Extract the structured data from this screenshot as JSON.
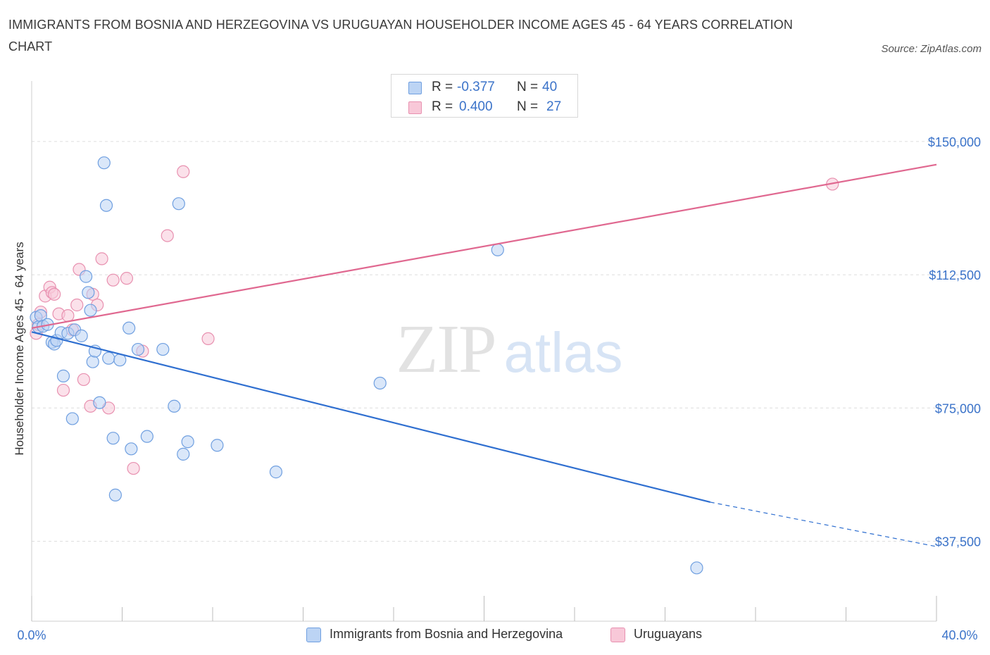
{
  "title": "IMMIGRANTS FROM BOSNIA AND HERZEGOVINA VS URUGUAYAN HOUSEHOLDER INCOME AGES 45 - 64 YEARS CORRELATION CHART",
  "source": "Source: ZipAtlas.com",
  "watermark": {
    "zip": "ZIP",
    "atlas": "atlas"
  },
  "colors": {
    "blue_fill": "#bcd4f4",
    "blue_stroke": "#6f9fe0",
    "blue_line": "#2f6fd0",
    "pink_fill": "#f8c8d8",
    "pink_stroke": "#e891b0",
    "pink_line": "#e06890",
    "axis_text": "#3b73c9",
    "grid": "#dddddd"
  },
  "legend": {
    "rows": [
      {
        "r_label": "R = ",
        "r_value": "-0.377",
        "n_label": "N = ",
        "n_value": "40",
        "color": "blue"
      },
      {
        "r_label": "R = ",
        "r_value": "0.400",
        "n_label": "N = ",
        "n_value": "27",
        "color": "pink"
      }
    ]
  },
  "bottom_legend": [
    {
      "label": "Immigrants from Bosnia and Herzegovina",
      "color": "blue"
    },
    {
      "label": "Uruguayans",
      "color": "pink"
    }
  ],
  "chart_data": {
    "type": "scatter",
    "title": "IMMIGRANTS FROM BOSNIA AND HERZEGOVINA VS URUGUAYAN HOUSEHOLDER INCOME AGES 45 - 64 YEARS CORRELATION CHART",
    "xlabel": "",
    "ylabel": "Householder Income Ages 45 - 64 years",
    "xlim": [
      0,
      40
    ],
    "ylim": [
      15000,
      170000
    ],
    "x_tick_labels": [
      "0.0%",
      "40.0%"
    ],
    "y_ticks": [
      37500,
      75000,
      112500,
      150000
    ],
    "y_tick_labels": [
      "$37,500",
      "$75,000",
      "$112,500",
      "$150,000"
    ],
    "grid": true,
    "legend_position": "top-center",
    "series": [
      {
        "name": "Immigrants from Bosnia and Herzegovina",
        "color": "blue",
        "r": -0.377,
        "n": 40,
        "trend": {
          "x": [
            0,
            30.0
          ],
          "y": [
            96400,
            48500
          ],
          "dashed_to": [
            40,
            36000
          ]
        },
        "points": [
          [
            0.2,
            100500
          ],
          [
            0.3,
            97800
          ],
          [
            0.4,
            101000
          ],
          [
            0.5,
            98000
          ],
          [
            0.7,
            98500
          ],
          [
            0.9,
            93500
          ],
          [
            1.0,
            93000
          ],
          [
            1.1,
            94000
          ],
          [
            1.3,
            96200
          ],
          [
            1.4,
            84000
          ],
          [
            1.6,
            96000
          ],
          [
            1.8,
            72000
          ],
          [
            1.9,
            97000
          ],
          [
            2.2,
            95300
          ],
          [
            2.4,
            112000
          ],
          [
            2.5,
            107500
          ],
          [
            2.6,
            102500
          ],
          [
            2.7,
            88000
          ],
          [
            2.8,
            91000
          ],
          [
            3.0,
            76500
          ],
          [
            3.2,
            144000
          ],
          [
            3.3,
            132000
          ],
          [
            3.4,
            89000
          ],
          [
            3.6,
            66500
          ],
          [
            3.7,
            50500
          ],
          [
            3.9,
            88500
          ],
          [
            4.3,
            97500
          ],
          [
            4.4,
            63500
          ],
          [
            4.7,
            91500
          ],
          [
            5.1,
            67000
          ],
          [
            5.8,
            91500
          ],
          [
            6.3,
            75500
          ],
          [
            6.5,
            132500
          ],
          [
            6.7,
            62000
          ],
          [
            6.9,
            65500
          ],
          [
            8.2,
            64500
          ],
          [
            10.8,
            57000
          ],
          [
            15.4,
            82000
          ],
          [
            20.6,
            119500
          ],
          [
            29.4,
            30000
          ]
        ]
      },
      {
        "name": "Uruguayans",
        "color": "pink",
        "r": 0.4,
        "n": 27,
        "trend": {
          "x": [
            0,
            40
          ],
          "y": [
            97500,
            143500
          ]
        },
        "points": [
          [
            0.2,
            96000
          ],
          [
            0.3,
            98500
          ],
          [
            0.4,
            102000
          ],
          [
            0.6,
            106500
          ],
          [
            0.8,
            109000
          ],
          [
            0.9,
            107500
          ],
          [
            1.0,
            107000
          ],
          [
            1.2,
            101500
          ],
          [
            1.4,
            80000
          ],
          [
            1.6,
            101000
          ],
          [
            1.8,
            97000
          ],
          [
            2.0,
            104000
          ],
          [
            2.1,
            114000
          ],
          [
            2.3,
            83000
          ],
          [
            2.6,
            75500
          ],
          [
            2.7,
            107000
          ],
          [
            2.9,
            104000
          ],
          [
            3.1,
            117000
          ],
          [
            3.4,
            75000
          ],
          [
            3.6,
            111000
          ],
          [
            4.2,
            111500
          ],
          [
            4.5,
            58000
          ],
          [
            4.9,
            91000
          ],
          [
            6.0,
            123500
          ],
          [
            6.7,
            141500
          ],
          [
            7.8,
            94500
          ],
          [
            35.4,
            138000
          ]
        ]
      }
    ]
  }
}
